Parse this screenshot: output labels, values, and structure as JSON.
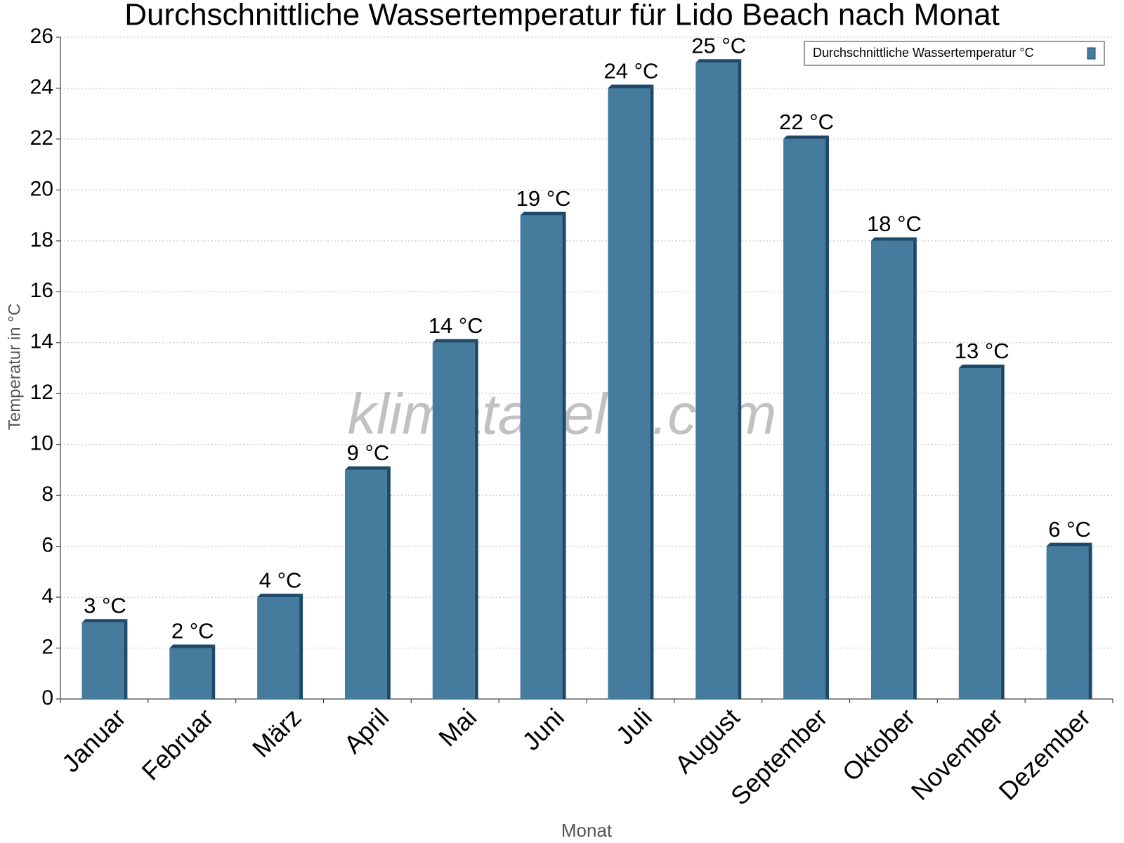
{
  "chart_data": {
    "type": "bar",
    "title": "Durchschnittliche Wassertemperatur für Lido Beach nach Monat",
    "x_label": "Monat",
    "y_label": "Temperatur in °C",
    "watermark": "klimatabelle.com",
    "categories": [
      "Januar",
      "Februar",
      "März",
      "April",
      "Mai",
      "Juni",
      "Juli",
      "August",
      "September",
      "Oktober",
      "November",
      "Dezember"
    ],
    "series": [
      {
        "name": "Durchschnittliche Wassertemperatur °C",
        "color": "#457b9d",
        "values": [
          3,
          2,
          4,
          9,
          14,
          19,
          24,
          25,
          22,
          18,
          13,
          6
        ],
        "value_labels": [
          "3 °C",
          "2 °C",
          "4 °C",
          "9 °C",
          "14 °C",
          "19 °C",
          "24 °C",
          "25 °C",
          "22 °C",
          "18 °C",
          "13 °C",
          "6 °C"
        ]
      }
    ],
    "ylim": [
      0,
      26
    ],
    "yticks": [
      0,
      2,
      4,
      6,
      8,
      10,
      12,
      14,
      16,
      18,
      20,
      22,
      24,
      26
    ],
    "grid": true,
    "legend": "upper right"
  }
}
